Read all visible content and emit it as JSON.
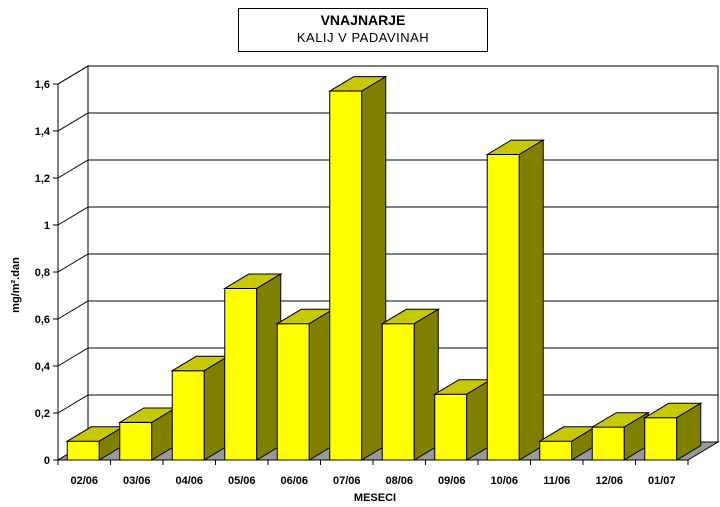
{
  "chart_data": {
    "type": "bar",
    "title": "VNAJNARJE",
    "subtitle": "KALIJ  V  PADAVINAH",
    "xlabel": "MESECI",
    "ylabel": "mg/m².dan",
    "categories": [
      "02/06",
      "03/06",
      "04/06",
      "05/06",
      "06/06",
      "07/06",
      "08/06",
      "09/06",
      "10/06",
      "11/06",
      "12/06",
      "01/07"
    ],
    "values": [
      0.08,
      0.16,
      0.38,
      0.73,
      0.58,
      1.57,
      0.58,
      0.28,
      1.3,
      0.08,
      0.14,
      0.18
    ],
    "ylim": [
      0,
      1.6
    ],
    "yticks": [
      0,
      0.2,
      0.4,
      0.6,
      0.8,
      1,
      1.2,
      1.4,
      1.6
    ],
    "ytick_labels": [
      "0",
      "0,2",
      "0,4",
      "0,6",
      "0,8",
      "1",
      "1,2",
      "1,4",
      "1,6"
    ],
    "grid": true,
    "style": "3d",
    "colors": {
      "bar_front": "#ffff00",
      "bar_top": "#c8c800",
      "bar_side": "#808000",
      "floor": "#999999",
      "grid": "#000000"
    }
  }
}
